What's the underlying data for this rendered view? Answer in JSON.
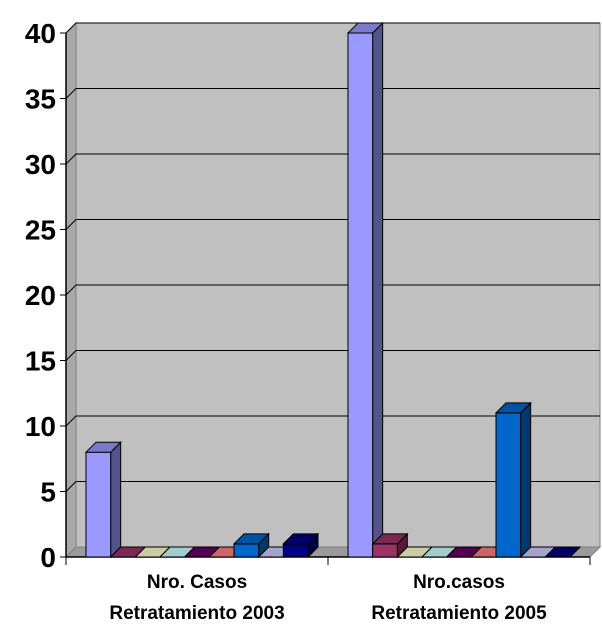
{
  "chart_data": {
    "type": "bar",
    "style": "3d-clustered-column",
    "categories": [
      [
        "Nro. Casos",
        "Retratamiento 2003"
      ],
      [
        "Nro.casos",
        "Retratamiento 2005"
      ]
    ],
    "ylim": [
      0,
      40
    ],
    "yticks": [
      0,
      5,
      10,
      15,
      20,
      25,
      30,
      35,
      40
    ],
    "grid": true,
    "legend": "none",
    "series": [
      {
        "values": [
          8,
          40
        ],
        "color": "#9999ff"
      },
      {
        "values": [
          0,
          1
        ],
        "color": "#993366"
      },
      {
        "values": [
          0,
          0
        ],
        "color": "#ffffcc"
      },
      {
        "values": [
          0,
          0
        ],
        "color": "#ccffff"
      },
      {
        "values": [
          0,
          0
        ],
        "color": "#660066"
      },
      {
        "values": [
          0,
          0
        ],
        "color": "#ff8080"
      },
      {
        "values": [
          1,
          11
        ],
        "color": "#0066cc"
      },
      {
        "values": [
          0,
          0
        ],
        "color": "#ccccff"
      },
      {
        "values": [
          1,
          0
        ],
        "color": "#000080"
      }
    ],
    "plot_background": "#c0c0c0"
  }
}
